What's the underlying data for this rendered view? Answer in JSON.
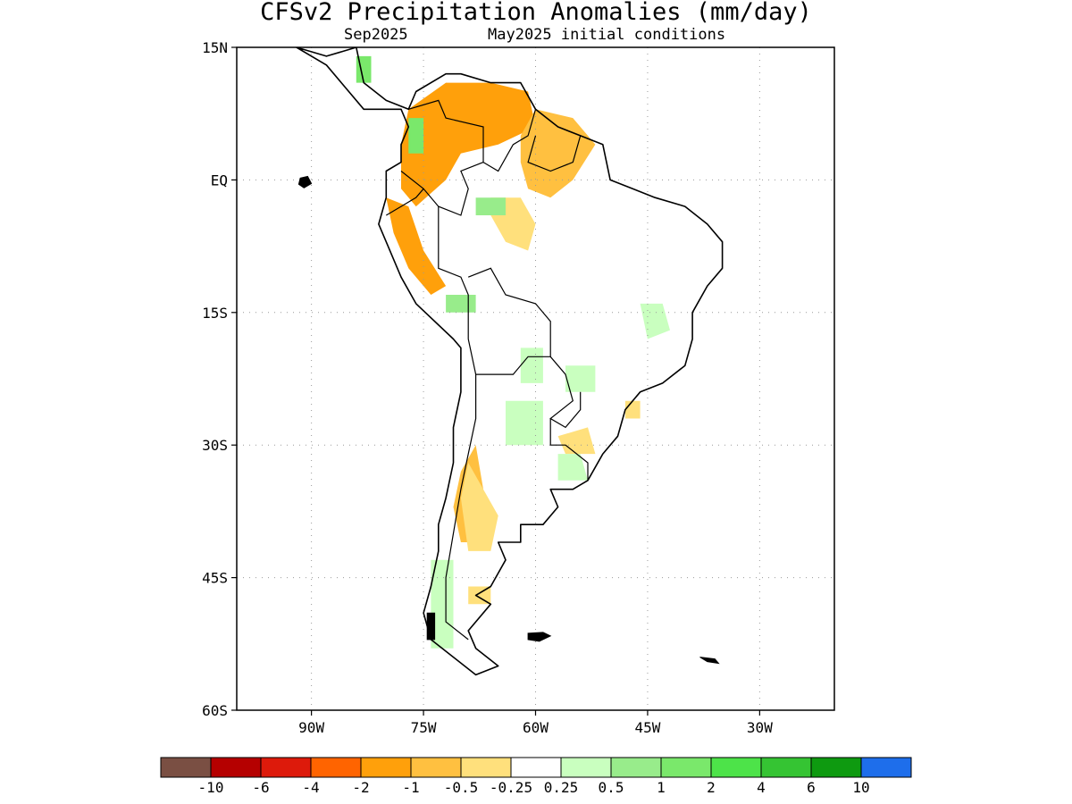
{
  "title": "CFSv2 Precipitation Anomalies (mm/day)",
  "subtitle_left": "Sep2025",
  "subtitle_right": "May2025 initial conditions",
  "map": {
    "lon_range": [
      -100,
      -20
    ],
    "lat_range": [
      -60,
      15
    ],
    "lat_ticks": [
      {
        "label": "15N",
        "lat": 15
      },
      {
        "label": "EQ",
        "lat": 0
      },
      {
        "label": "15S",
        "lat": -15
      },
      {
        "label": "30S",
        "lat": -30
      },
      {
        "label": "45S",
        "lat": -45
      },
      {
        "label": "60S",
        "lat": -60
      }
    ],
    "lon_ticks": [
      {
        "label": "90W",
        "lon": -90
      },
      {
        "label": "75W",
        "lon": -75
      },
      {
        "label": "60W",
        "lon": -60
      },
      {
        "label": "45W",
        "lon": -45
      },
      {
        "label": "30W",
        "lon": -30
      }
    ],
    "grid": "dotted"
  },
  "colorbar": {
    "colors": [
      "#7a4f43",
      "#b50000",
      "#dd1a0b",
      "#ff6400",
      "#ffa00b",
      "#ffc040",
      "#ffe07c",
      "#ffffff",
      "#c9ffbf",
      "#98ec8b",
      "#7ae86b",
      "#4de349",
      "#35c433",
      "#0e9a10",
      "#1e6eeb"
    ],
    "labels": [
      "-10",
      "-6",
      "-4",
      "-2",
      "-1",
      "-0.5",
      "-0.25",
      "0.25",
      "0.5",
      "1",
      "2",
      "4",
      "6",
      "10"
    ]
  },
  "anomaly_regions": [
    {
      "level": "-1",
      "color": "#ffa00b",
      "points": [
        [
          -77,
          8
        ],
        [
          -72,
          11
        ],
        [
          -66,
          11
        ],
        [
          -61,
          10
        ],
        [
          -60,
          6
        ],
        [
          -65,
          4
        ],
        [
          -70,
          3
        ],
        [
          -72,
          0
        ],
        [
          -76,
          -3
        ],
        [
          -78,
          -1
        ],
        [
          -78,
          4
        ]
      ]
    },
    {
      "level": "-1",
      "color": "#ffa00b",
      "points": [
        [
          -80,
          -2
        ],
        [
          -77,
          -3
        ],
        [
          -75,
          -8
        ],
        [
          -72,
          -12
        ],
        [
          -74,
          -13
        ],
        [
          -77,
          -10
        ],
        [
          -79,
          -6
        ]
      ]
    },
    {
      "level": "-0.5",
      "color": "#ffc040",
      "points": [
        [
          -60,
          8
        ],
        [
          -55,
          7
        ],
        [
          -52,
          4
        ],
        [
          -55,
          0
        ],
        [
          -58,
          -2
        ],
        [
          -61,
          -1
        ],
        [
          -62,
          2
        ],
        [
          -62,
          5
        ]
      ]
    },
    {
      "level": "-0.5",
      "color": "#ffc040",
      "points": [
        [
          -70,
          -33
        ],
        [
          -68,
          -30
        ],
        [
          -67,
          -35
        ],
        [
          -68,
          -41
        ],
        [
          -70,
          -41
        ],
        [
          -71,
          -37
        ]
      ]
    },
    {
      "level": "-0.25",
      "color": "#ffe07c",
      "points": [
        [
          -66,
          -2
        ],
        [
          -62,
          -2
        ],
        [
          -60,
          -5
        ],
        [
          -61,
          -8
        ],
        [
          -64,
          -7
        ],
        [
          -66,
          -4
        ]
      ]
    },
    {
      "level": "-0.25",
      "color": "#ffe07c",
      "points": [
        [
          -69,
          -32
        ],
        [
          -65,
          -38
        ],
        [
          -66,
          -42
        ],
        [
          -69,
          -42
        ],
        [
          -70,
          -36
        ]
      ]
    },
    {
      "level": "-0.25",
      "color": "#ffe07c",
      "points": [
        [
          -57,
          -29
        ],
        [
          -53,
          -28
        ],
        [
          -52,
          -31
        ],
        [
          -56,
          -31
        ]
      ]
    },
    {
      "level": "-0.25",
      "color": "#ffe07c",
      "points": [
        [
          -69,
          -46
        ],
        [
          -66,
          -46
        ],
        [
          -66,
          -48
        ],
        [
          -69,
          -48
        ]
      ]
    },
    {
      "level": "-0.25",
      "color": "#ffe07c",
      "points": [
        [
          -48,
          -25
        ],
        [
          -46,
          -25
        ],
        [
          -46,
          -27
        ],
        [
          -48,
          -27
        ]
      ]
    },
    {
      "level": "0.5",
      "color": "#c9ffbf",
      "points": [
        [
          -46,
          -14
        ],
        [
          -43,
          -14
        ],
        [
          -42,
          -17
        ],
        [
          -45,
          -18
        ]
      ]
    },
    {
      "level": "0.5",
      "color": "#c9ffbf",
      "points": [
        [
          -64,
          -25
        ],
        [
          -59,
          -25
        ],
        [
          -59,
          -30
        ],
        [
          -64,
          -30
        ]
      ]
    },
    {
      "level": "0.5",
      "color": "#c9ffbf",
      "points": [
        [
          -57,
          -31
        ],
        [
          -54,
          -31
        ],
        [
          -53,
          -34
        ],
        [
          -57,
          -34
        ]
      ]
    },
    {
      "level": "0.5",
      "color": "#c9ffbf",
      "points": [
        [
          -62,
          -19
        ],
        [
          -59,
          -19
        ],
        [
          -59,
          -23
        ],
        [
          -62,
          -23
        ]
      ]
    },
    {
      "level": "0.5",
      "color": "#c9ffbf",
      "points": [
        [
          -56,
          -21
        ],
        [
          -52,
          -21
        ],
        [
          -52,
          -24
        ],
        [
          -56,
          -24
        ]
      ]
    },
    {
      "level": "1",
      "color": "#98ec8b",
      "points": [
        [
          -72,
          -13
        ],
        [
          -68,
          -13
        ],
        [
          -68,
          -15
        ],
        [
          -72,
          -15
        ]
      ]
    },
    {
      "level": "1",
      "color": "#98ec8b",
      "points": [
        [
          -68,
          -2
        ],
        [
          -64,
          -2
        ],
        [
          -64,
          -4
        ],
        [
          -68,
          -4
        ]
      ]
    },
    {
      "level": "2",
      "color": "#7ae86b",
      "points": [
        [
          -77,
          7
        ],
        [
          -75,
          7
        ],
        [
          -75,
          3
        ],
        [
          -77,
          3
        ]
      ]
    },
    {
      "level": "2",
      "color": "#7ae86b",
      "points": [
        [
          -84,
          14
        ],
        [
          -82,
          14
        ],
        [
          -82,
          11
        ],
        [
          -84,
          11
        ]
      ]
    },
    {
      "level": "0.5",
      "color": "#c9ffbf",
      "points": [
        [
          -74,
          -43
        ],
        [
          -71,
          -43
        ],
        [
          -71,
          -53
        ],
        [
          -74,
          -53
        ]
      ]
    }
  ],
  "land_outline": [
    [
      -92,
      15
    ],
    [
      -88,
      14
    ],
    [
      -84,
      15
    ],
    [
      -83,
      11
    ],
    [
      -80,
      9
    ],
    [
      -77,
      8
    ],
    [
      -76,
      10
    ],
    [
      -72,
      12
    ],
    [
      -70,
      12
    ],
    [
      -66,
      11
    ],
    [
      -62,
      11
    ],
    [
      -60,
      8
    ],
    [
      -57,
      6
    ],
    [
      -54,
      5
    ],
    [
      -51,
      4
    ],
    [
      -50,
      0
    ],
    [
      -47,
      -1
    ],
    [
      -44,
      -2
    ],
    [
      -40,
      -3
    ],
    [
      -37,
      -5
    ],
    [
      -35,
      -7
    ],
    [
      -35,
      -10
    ],
    [
      -37,
      -12
    ],
    [
      -39,
      -15
    ],
    [
      -39,
      -18
    ],
    [
      -40,
      -21
    ],
    [
      -43,
      -23
    ],
    [
      -46,
      -24
    ],
    [
      -48,
      -26
    ],
    [
      -49,
      -29
    ],
    [
      -51,
      -31
    ],
    [
      -53,
      -34
    ],
    [
      -55,
      -35
    ],
    [
      -58,
      -35
    ],
    [
      -57,
      -37
    ],
    [
      -59,
      -39
    ],
    [
      -62,
      -39
    ],
    [
      -62,
      -41
    ],
    [
      -65,
      -41
    ],
    [
      -64,
      -43
    ],
    [
      -66,
      -46
    ],
    [
      -68,
      -47
    ],
    [
      -66,
      -48
    ],
    [
      -69,
      -51
    ],
    [
      -68,
      -53
    ],
    [
      -65,
      -55
    ],
    [
      -68,
      -56
    ],
    [
      -71,
      -54
    ],
    [
      -74,
      -52
    ],
    [
      -75,
      -49
    ],
    [
      -74,
      -46
    ],
    [
      -73,
      -42
    ],
    [
      -73,
      -39
    ],
    [
      -72,
      -36
    ],
    [
      -71,
      -32
    ],
    [
      -71,
      -28
    ],
    [
      -70,
      -24
    ],
    [
      -70,
      -19
    ],
    [
      -71,
      -18
    ],
    [
      -76,
      -14
    ],
    [
      -78,
      -11
    ],
    [
      -80,
      -7
    ],
    [
      -81,
      -5
    ],
    [
      -80,
      -2
    ],
    [
      -80,
      1
    ],
    [
      -78,
      2
    ],
    [
      -78,
      4
    ],
    [
      -77,
      6
    ],
    [
      -78,
      8
    ],
    [
      -80,
      8
    ],
    [
      -83,
      8
    ],
    [
      -86,
      11
    ],
    [
      -88,
      13
    ],
    [
      -92,
      15
    ]
  ],
  "borders": [
    [
      [
        -77,
        8
      ],
      [
        -73,
        9
      ],
      [
        -72,
        7
      ],
      [
        -67,
        6
      ],
      [
        -67,
        2
      ],
      [
        -70,
        1
      ],
      [
        -69,
        -1
      ],
      [
        -70,
        -4
      ],
      [
        -73,
        -3
      ],
      [
        -75,
        -1
      ],
      [
        -78,
        1
      ]
    ],
    [
      [
        -73,
        -3
      ],
      [
        -73,
        -10
      ],
      [
        -70,
        -11
      ],
      [
        -69,
        -13
      ],
      [
        -69,
        -18
      ]
    ],
    [
      [
        -80,
        -4
      ],
      [
        -78,
        -3
      ],
      [
        -76,
        -2
      ],
      [
        -75,
        -1
      ]
    ],
    [
      [
        -69,
        -11
      ],
      [
        -66,
        -10
      ],
      [
        -64,
        -13
      ],
      [
        -60,
        -14
      ],
      [
        -58,
        -16
      ],
      [
        -58,
        -20
      ],
      [
        -61,
        -20
      ],
      [
        -63,
        -22
      ],
      [
        -68,
        -22
      ],
      [
        -69,
        -18
      ]
    ],
    [
      [
        -60,
        5
      ],
      [
        -61,
        2
      ],
      [
        -58,
        1
      ],
      [
        -55,
        2
      ],
      [
        -54,
        5
      ]
    ],
    [
      [
        -67,
        2
      ],
      [
        -65,
        1
      ],
      [
        -63,
        4
      ],
      [
        -61,
        5
      ],
      [
        -60,
        8
      ]
    ],
    [
      [
        -58,
        -20
      ],
      [
        -56,
        -22
      ],
      [
        -55,
        -25
      ],
      [
        -58,
        -27
      ],
      [
        -56,
        -28
      ],
      [
        -54,
        -26
      ],
      [
        -54,
        -24
      ]
    ],
    [
      [
        -58,
        -27
      ],
      [
        -58,
        -30
      ],
      [
        -56,
        -30
      ],
      [
        -53,
        -32
      ],
      [
        -53,
        -34
      ]
    ],
    [
      [
        -68,
        -22
      ],
      [
        -68,
        -27
      ],
      [
        -69,
        -31
      ],
      [
        -70,
        -35
      ],
      [
        -71,
        -40
      ],
      [
        -72,
        -45
      ],
      [
        -72,
        -50
      ],
      [
        -69,
        -52
      ]
    ]
  ],
  "islands": [
    [
      [
        -91.5,
        0.2
      ],
      [
        -90.5,
        0.4
      ],
      [
        -90,
        -0.4
      ],
      [
        -91,
        -0.9
      ],
      [
        -91.7,
        -0.5
      ]
    ],
    [
      [
        -61,
        -51.3
      ],
      [
        -59,
        -51.2
      ],
      [
        -58,
        -51.6
      ],
      [
        -59.5,
        -52.2
      ],
      [
        -61,
        -52
      ]
    ],
    [
      [
        -38,
        -54
      ],
      [
        -36,
        -54.2
      ],
      [
        -35.5,
        -54.7
      ],
      [
        -37,
        -54.5
      ]
    ],
    [
      [
        -74.5,
        -49
      ],
      [
        -73.5,
        -49
      ],
      [
        -73.5,
        -52
      ],
      [
        -74.5,
        -52
      ]
    ]
  ]
}
